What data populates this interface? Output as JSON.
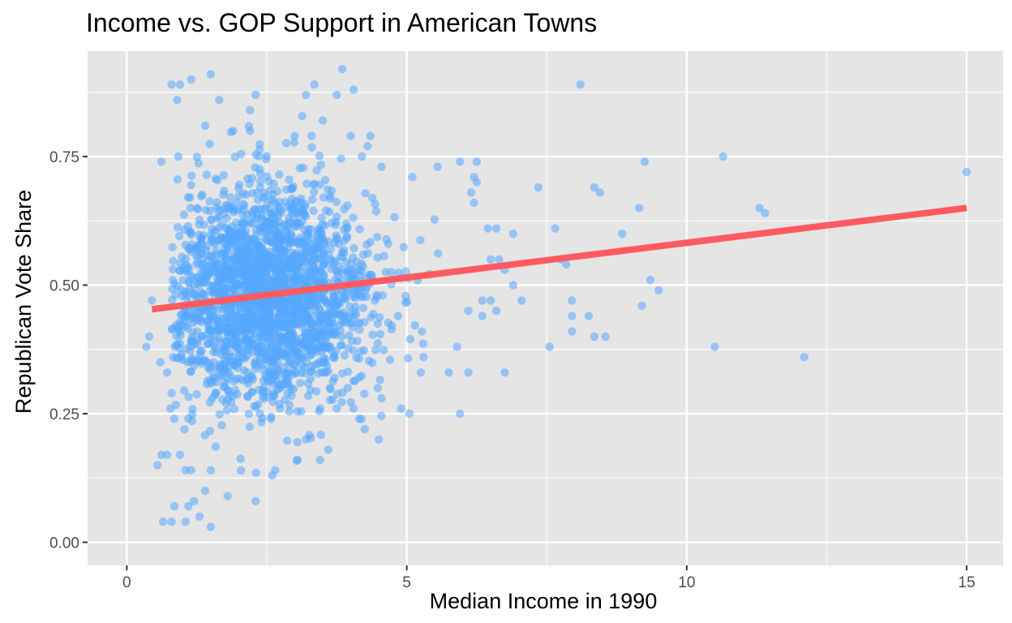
{
  "chart_data": {
    "type": "scatter",
    "title": "Income vs. GOP Support in American Towns",
    "xlabel": "Median Income in 1990",
    "ylabel": "Republican Vote Share",
    "xlim": [
      -0.7,
      15.65
    ],
    "ylim": [
      -0.045,
      0.955
    ],
    "x_ticks": [
      0,
      5,
      10,
      15
    ],
    "x_tick_labels": [
      "0",
      "5",
      "10",
      "15"
    ],
    "y_ticks": [
      0,
      0.25,
      0.5,
      0.75
    ],
    "y_tick_labels": [
      "0.00",
      "0.25",
      "0.50",
      "0.75"
    ],
    "grid": true,
    "colors": {
      "panel": "#e5e5e5",
      "grid": "#ffffff",
      "points": "#56a8ff",
      "fit_line": "#ff5a5f",
      "tick_text": "#4d4d4d"
    },
    "series": [
      {
        "kind": "points",
        "points": [
          [
            0.8,
            0.89
          ],
          [
            0.95,
            0.89
          ],
          [
            1.15,
            0.9
          ],
          [
            1.5,
            0.91
          ],
          [
            0.9,
            0.86
          ],
          [
            1.65,
            0.86
          ],
          [
            3.35,
            0.89
          ],
          [
            3.2,
            0.87
          ],
          [
            2.3,
            0.87
          ],
          [
            2.2,
            0.84
          ],
          [
            3.85,
            0.92
          ],
          [
            4.05,
            0.88
          ],
          [
            3.75,
            0.87
          ],
          [
            3.5,
            0.82
          ],
          [
            8.1,
            0.89
          ],
          [
            0.62,
            0.74
          ],
          [
            0.92,
            0.75
          ],
          [
            1.9,
            0.8
          ],
          [
            2.2,
            0.8
          ],
          [
            1.4,
            0.81
          ],
          [
            3.0,
            0.79
          ],
          [
            3.3,
            0.79
          ],
          [
            4.0,
            0.79
          ],
          [
            4.35,
            0.79
          ],
          [
            4.2,
            0.75
          ],
          [
            5.1,
            0.71
          ],
          [
            4.55,
            0.73
          ],
          [
            5.55,
            0.73
          ],
          [
            5.95,
            0.74
          ],
          [
            6.25,
            0.74
          ],
          [
            6.2,
            0.71
          ],
          [
            6.25,
            0.7
          ],
          [
            6.2,
            0.66
          ],
          [
            6.15,
            0.68
          ],
          [
            6.6,
            0.61
          ],
          [
            6.9,
            0.6
          ],
          [
            7.35,
            0.69
          ],
          [
            7.65,
            0.61
          ],
          [
            8.35,
            0.69
          ],
          [
            8.45,
            0.68
          ],
          [
            8.85,
            0.6
          ],
          [
            9.15,
            0.65
          ],
          [
            9.25,
            0.74
          ],
          [
            10.65,
            0.75
          ],
          [
            11.3,
            0.65
          ],
          [
            11.4,
            0.64
          ],
          [
            15.0,
            0.72
          ],
          [
            6.45,
            0.61
          ],
          [
            6.75,
            0.53
          ],
          [
            6.9,
            0.5
          ],
          [
            7.05,
            0.47
          ],
          [
            6.6,
            0.45
          ],
          [
            6.75,
            0.33
          ],
          [
            7.75,
            0.55
          ],
          [
            7.85,
            0.54
          ],
          [
            7.95,
            0.47
          ],
          [
            7.95,
            0.44
          ],
          [
            8.25,
            0.44
          ],
          [
            7.95,
            0.41
          ],
          [
            7.55,
            0.38
          ],
          [
            8.35,
            0.4
          ],
          [
            8.55,
            0.4
          ],
          [
            9.2,
            0.46
          ],
          [
            9.35,
            0.51
          ],
          [
            9.5,
            0.49
          ],
          [
            10.5,
            0.38
          ],
          [
            12.1,
            0.36
          ],
          [
            6.5,
            0.55
          ],
          [
            6.65,
            0.55
          ],
          [
            6.1,
            0.45
          ],
          [
            6.35,
            0.47
          ],
          [
            6.35,
            0.44
          ],
          [
            6.5,
            0.47
          ],
          [
            5.9,
            0.38
          ],
          [
            6.1,
            0.33
          ],
          [
            5.75,
            0.33
          ],
          [
            5.95,
            0.25
          ],
          [
            5.3,
            0.36
          ],
          [
            5.25,
            0.33
          ],
          [
            5.05,
            0.25
          ],
          [
            4.9,
            0.26
          ],
          [
            4.55,
            0.28
          ],
          [
            4.5,
            0.2
          ],
          [
            4.15,
            0.24
          ],
          [
            4.25,
            0.22
          ],
          [
            4.05,
            0.26
          ],
          [
            3.75,
            0.26
          ],
          [
            3.6,
            0.18
          ],
          [
            3.45,
            0.16
          ],
          [
            3.2,
            0.2
          ],
          [
            3.05,
            0.16
          ],
          [
            2.65,
            0.14
          ],
          [
            2.6,
            0.13
          ],
          [
            2.3,
            0.08
          ],
          [
            1.8,
            0.09
          ],
          [
            1.5,
            0.03
          ],
          [
            1.3,
            0.05
          ],
          [
            1.05,
            0.04
          ],
          [
            0.8,
            0.04
          ],
          [
            0.65,
            0.04
          ],
          [
            1.1,
            0.07
          ],
          [
            0.85,
            0.07
          ],
          [
            1.2,
            0.08
          ],
          [
            1.4,
            0.1
          ],
          [
            1.5,
            0.14
          ],
          [
            1.15,
            0.14
          ],
          [
            0.55,
            0.15
          ],
          [
            0.62,
            0.17
          ],
          [
            0.72,
            0.17
          ],
          [
            0.95,
            0.17
          ],
          [
            1.05,
            0.14
          ],
          [
            0.35,
            0.38
          ],
          [
            0.4,
            0.4
          ],
          [
            0.45,
            0.47
          ],
          [
            0.6,
            0.35
          ],
          [
            0.72,
            0.33
          ],
          [
            0.8,
            0.29
          ],
          [
            0.78,
            0.26
          ],
          [
            0.85,
            0.24
          ]
        ],
        "cloud": {
          "note": "dense cluster of towns; 2300 points drawn",
          "count": 2300,
          "x_center": 2.5,
          "x_sd": 0.95,
          "y_center": 0.48,
          "y_sd": 0.105,
          "x_range": [
            0.8,
            6.4
          ],
          "y_range": [
            0.08,
            0.83
          ]
        }
      },
      {
        "kind": "fit_line",
        "points": [
          [
            0.45,
            0.453
          ],
          [
            15.0,
            0.65
          ]
        ]
      }
    ]
  }
}
